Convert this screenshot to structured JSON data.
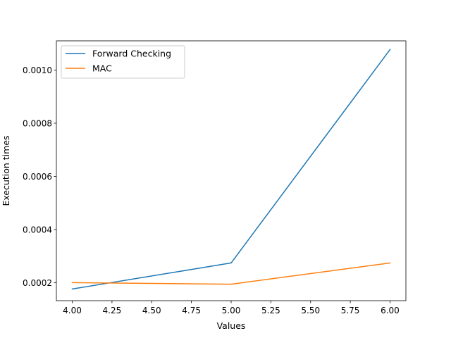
{
  "chart_data": {
    "type": "line",
    "title": "",
    "xlabel": "Values",
    "ylabel": "Execution times",
    "xlim": [
      3.9,
      6.1
    ],
    "ylim": [
      0.000132,
      0.00111
    ],
    "xticks": [
      4.0,
      4.25,
      4.5,
      4.75,
      5.0,
      5.25,
      5.5,
      5.75,
      6.0
    ],
    "xtick_labels": [
      "4.00",
      "4.25",
      "4.50",
      "4.75",
      "5.00",
      "5.25",
      "5.50",
      "5.75",
      "6.00"
    ],
    "yticks": [
      0.0002,
      0.0004,
      0.0006,
      0.0008,
      0.001
    ],
    "ytick_labels": [
      "0.0002",
      "0.0004",
      "0.0006",
      "0.0008",
      "0.0010"
    ],
    "grid": false,
    "legend_position": "upper-left",
    "x": [
      4,
      5,
      6
    ],
    "series": [
      {
        "name": "Forward Checking",
        "color": "#1f77b4",
        "values": [
          0.000176,
          0.000274,
          0.001077
        ]
      },
      {
        "name": "MAC",
        "color": "#ff7f0e",
        "values": [
          0.0002,
          0.000194,
          0.000274
        ]
      }
    ]
  }
}
